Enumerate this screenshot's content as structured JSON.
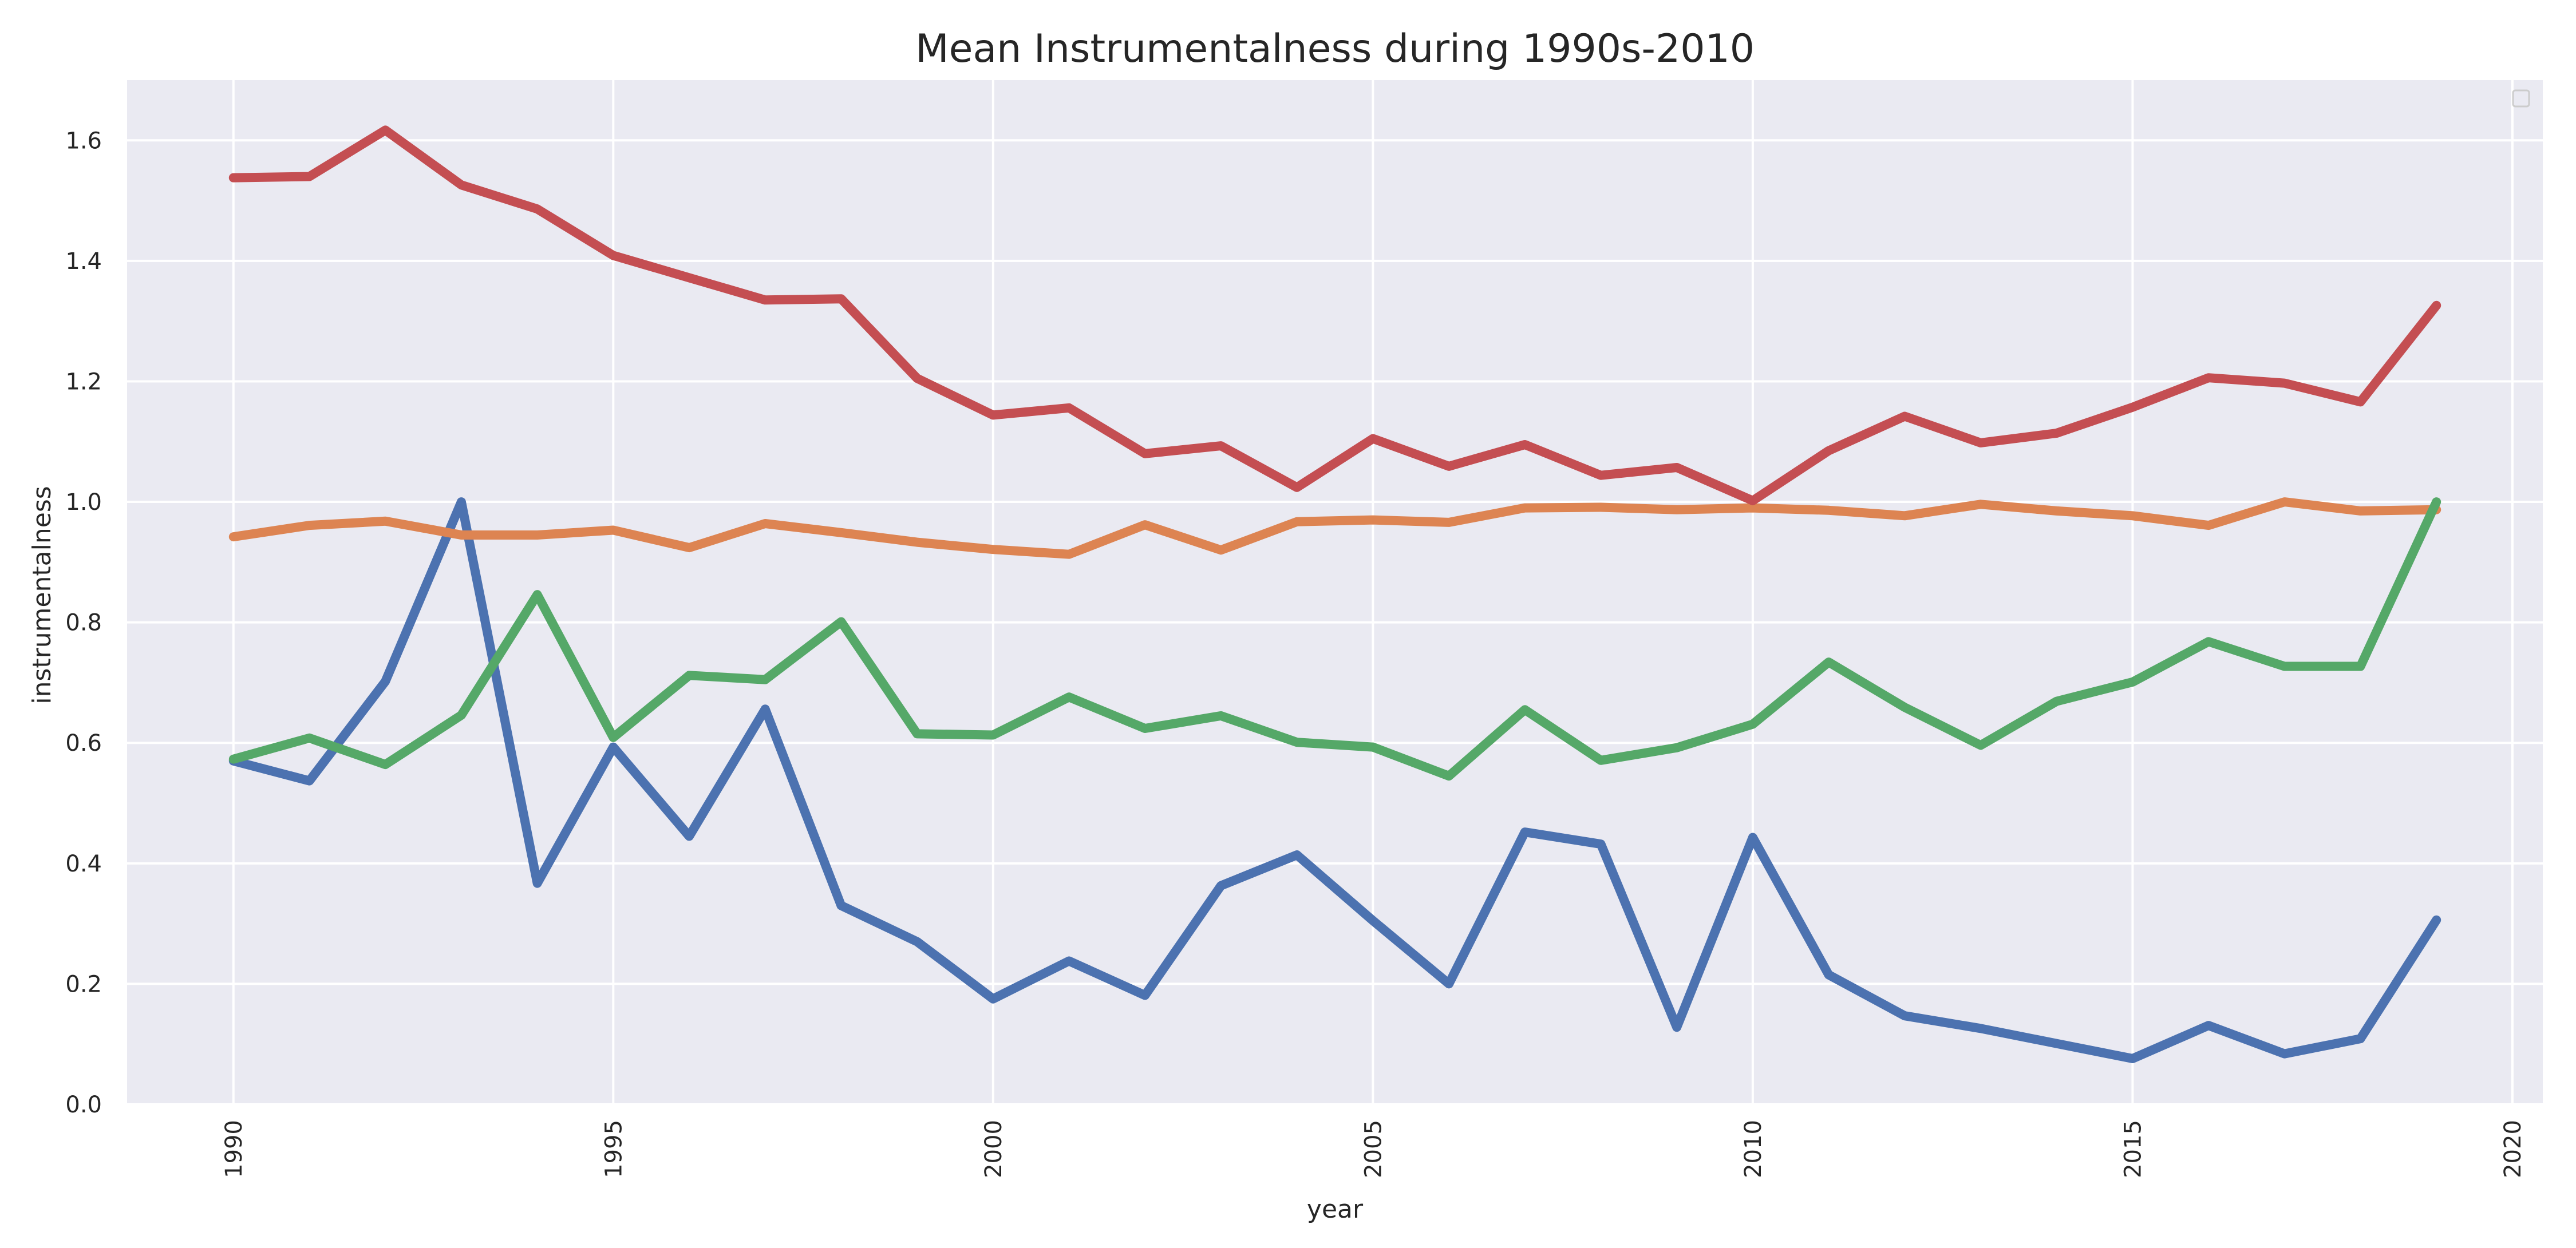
{
  "chart_data": {
    "type": "line",
    "title": "Mean Instrumentalness during 1990s-2010",
    "xlabel": "year",
    "ylabel": "instrumentalness",
    "xlim": [
      1988.6,
      2020.4
    ],
    "ylim": [
      0,
      1.7
    ],
    "xticks": [
      1990,
      1995,
      2000,
      2005,
      2010,
      2015,
      2020
    ],
    "yticks": [
      "0.0",
      "0.2",
      "0.4",
      "0.6",
      "0.8",
      "1.0",
      "1.2",
      "1.4",
      "1.6"
    ],
    "grid": true,
    "legend": "top-right (empty)",
    "background": "#eaeaf2",
    "x": [
      1990,
      1991,
      1992,
      1993,
      1994,
      1995,
      1996,
      1997,
      1998,
      1999,
      2000,
      2001,
      2002,
      2003,
      2004,
      2005,
      2006,
      2007,
      2008,
      2009,
      2010,
      2011,
      2012,
      2013,
      2014,
      2015,
      2016,
      2017,
      2018,
      2019
    ],
    "series": [
      {
        "color": "#4c72b0",
        "values": [
          0.57,
          0.537,
          0.702,
          1.0,
          0.367,
          0.593,
          0.445,
          0.656,
          0.33,
          0.27,
          0.175,
          0.238,
          0.181,
          0.363,
          0.414,
          0.305,
          0.2,
          0.452,
          0.432,
          0.128,
          0.443,
          0.215,
          0.147,
          0.126,
          0.101,
          0.076,
          0.131,
          0.084,
          0.109,
          0.306
        ]
      },
      {
        "color": "#dd8452",
        "values": [
          0.942,
          0.961,
          0.968,
          0.945,
          0.945,
          0.953,
          0.924,
          0.964,
          0.949,
          0.933,
          0.921,
          0.913,
          0.962,
          0.92,
          0.967,
          0.97,
          0.966,
          0.99,
          0.991,
          0.987,
          0.99,
          0.986,
          0.977,
          0.996,
          0.985,
          0.977,
          0.961,
          1.0,
          0.985,
          0.987
        ]
      },
      {
        "color": "#55a868",
        "values": [
          0.573,
          0.608,
          0.564,
          0.646,
          0.846,
          0.609,
          0.712,
          0.705,
          0.801,
          0.615,
          0.613,
          0.676,
          0.624,
          0.645,
          0.601,
          0.593,
          0.545,
          0.655,
          0.571,
          0.592,
          0.631,
          0.734,
          0.659,
          0.596,
          0.669,
          0.701,
          0.768,
          0.727,
          0.727,
          1.0
        ]
      },
      {
        "color": "#c44e52",
        "values": [
          1.538,
          1.54,
          1.617,
          1.526,
          1.486,
          1.409,
          1.372,
          1.335,
          1.337,
          1.205,
          1.144,
          1.156,
          1.08,
          1.093,
          1.024,
          1.105,
          1.059,
          1.095,
          1.044,
          1.057,
          1.002,
          1.085,
          1.142,
          1.098,
          1.114,
          1.157,
          1.206,
          1.197,
          1.166,
          1.326
        ]
      }
    ]
  }
}
